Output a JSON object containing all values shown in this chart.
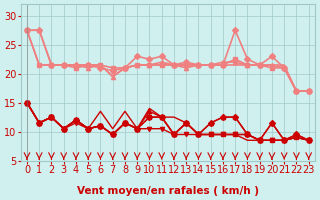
{
  "x": [
    0,
    1,
    2,
    3,
    4,
    5,
    6,
    7,
    8,
    9,
    10,
    11,
    12,
    13,
    14,
    15,
    16,
    17,
    18,
    19,
    20,
    21,
    22,
    23
  ],
  "lines_light": [
    {
      "y": [
        27.5,
        27.5,
        21.5,
        21.5,
        21.5,
        21.5,
        21.0,
        20.5,
        21.0,
        23.0,
        22.5,
        23.0,
        21.5,
        22.0,
        21.5,
        21.5,
        21.5,
        27.5,
        22.5,
        21.5,
        23.0,
        21.0,
        17.0,
        17.0
      ],
      "color": "#f08080",
      "marker": "D",
      "markersize": 3,
      "linewidth": 1.2
    },
    {
      "y": [
        27.5,
        27.5,
        21.5,
        21.5,
        21.5,
        21.0,
        21.5,
        19.5,
        21.0,
        21.5,
        21.5,
        22.0,
        21.5,
        21.0,
        21.5,
        21.5,
        22.0,
        22.0,
        21.5,
        21.5,
        21.5,
        21.0,
        17.0,
        17.0
      ],
      "color": "#f08080",
      "marker": "^",
      "markersize": 3,
      "linewidth": 1.2
    },
    {
      "y": [
        27.5,
        21.5,
        21.5,
        21.5,
        21.5,
        21.5,
        21.5,
        19.5,
        21.0,
        21.5,
        21.5,
        21.5,
        21.5,
        21.5,
        21.5,
        21.5,
        21.5,
        21.5,
        21.5,
        21.5,
        21.5,
        21.5,
        17.0,
        17.0
      ],
      "color": "#f08080",
      "marker": null,
      "markersize": 0,
      "linewidth": 1.2
    },
    {
      "y": [
        27.5,
        21.5,
        21.5,
        21.5,
        21.0,
        21.5,
        21.5,
        21.0,
        21.0,
        21.5,
        21.5,
        21.5,
        21.5,
        21.5,
        21.5,
        21.5,
        21.5,
        22.5,
        21.5,
        21.5,
        21.0,
        21.0,
        17.0,
        17.0
      ],
      "color": "#f08080",
      "marker": "s",
      "markersize": 3,
      "linewidth": 1.2
    }
  ],
  "lines_dark": [
    {
      "y": [
        15.0,
        11.5,
        12.5,
        10.5,
        12.0,
        10.5,
        11.0,
        9.5,
        11.5,
        10.5,
        12.5,
        12.5,
        9.5,
        11.5,
        9.5,
        11.5,
        12.5,
        12.5,
        9.5,
        8.5,
        11.5,
        8.5,
        9.5,
        8.5
      ],
      "color": "#cc0000",
      "marker": "D",
      "markersize": 3,
      "linewidth": 1.0
    },
    {
      "y": [
        15.0,
        11.5,
        12.5,
        10.5,
        12.0,
        10.5,
        11.0,
        9.5,
        11.5,
        10.5,
        13.5,
        12.5,
        9.5,
        11.5,
        9.5,
        11.5,
        12.5,
        12.5,
        9.5,
        8.5,
        11.5,
        8.5,
        9.5,
        8.5
      ],
      "color": "#cc0000",
      "marker": "^",
      "markersize": 3,
      "linewidth": 1.0
    },
    {
      "y": [
        15.0,
        11.5,
        12.5,
        10.5,
        12.0,
        10.5,
        13.5,
        10.5,
        13.5,
        10.5,
        14.0,
        12.5,
        12.5,
        11.5,
        9.5,
        9.5,
        9.5,
        9.5,
        8.5,
        8.5,
        8.5,
        8.5,
        9.0,
        8.5
      ],
      "color": "#cc0000",
      "marker": null,
      "markersize": 0,
      "linewidth": 1.0
    },
    {
      "y": [
        15.0,
        11.5,
        12.5,
        10.5,
        12.0,
        10.5,
        11.0,
        9.5,
        11.5,
        10.5,
        12.5,
        12.5,
        9.5,
        11.5,
        9.5,
        9.5,
        9.5,
        9.5,
        9.5,
        8.5,
        8.5,
        8.5,
        9.0,
        8.5
      ],
      "color": "#cc0000",
      "marker": "s",
      "markersize": 3,
      "linewidth": 1.0
    },
    {
      "y": [
        15.0,
        11.5,
        12.5,
        10.5,
        11.5,
        10.5,
        11.0,
        9.5,
        11.5,
        10.5,
        10.5,
        10.5,
        9.5,
        9.5,
        9.5,
        9.5,
        9.5,
        9.5,
        9.5,
        8.5,
        8.5,
        8.5,
        9.0,
        8.5
      ],
      "color": "#cc0000",
      "marker": "v",
      "markersize": 3,
      "linewidth": 1.0
    }
  ],
  "xlabel": "Vent moyen/en rafales ( km/h )",
  "ylabel": "",
  "xlim": [
    -0.5,
    23.5
  ],
  "ylim": [
    5,
    32
  ],
  "yticks": [
    5,
    10,
    15,
    20,
    25,
    30
  ],
  "xticks": [
    0,
    1,
    2,
    3,
    4,
    5,
    6,
    7,
    8,
    9,
    10,
    11,
    12,
    13,
    14,
    15,
    16,
    17,
    18,
    19,
    20,
    21,
    22,
    23
  ],
  "background_color": "#d0f0f0",
  "grid_color": "#a0c8c8",
  "arrow_color": "#cc0000",
  "xlabel_color": "#cc0000",
  "tick_color": "#cc0000",
  "fontsize_xlabel": 7.5,
  "fontsize_ticks": 7
}
